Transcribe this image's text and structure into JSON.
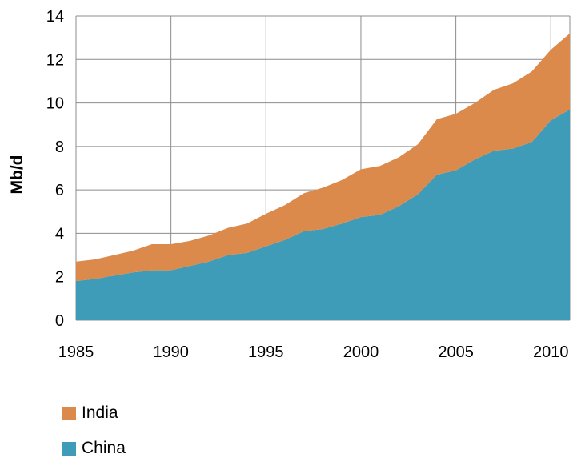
{
  "chart_data": {
    "type": "area",
    "stacked": true,
    "ylabel": "Mb/d",
    "xlabel": "",
    "title": "",
    "xlim": [
      1985,
      2011
    ],
    "ylim": [
      0,
      14
    ],
    "x_ticks": [
      1985,
      1990,
      1995,
      2000,
      2005,
      2010
    ],
    "y_ticks": [
      0,
      2,
      4,
      6,
      8,
      10,
      12,
      14
    ],
    "grid": true,
    "legend_position": "bottom-left",
    "x": [
      1985,
      1986,
      1987,
      1988,
      1989,
      1990,
      1991,
      1992,
      1993,
      1994,
      1995,
      1996,
      1997,
      1998,
      1999,
      2000,
      2001,
      2002,
      2003,
      2004,
      2005,
      2006,
      2007,
      2008,
      2009,
      2010,
      2011
    ],
    "series": [
      {
        "name": "China",
        "color": "#3f9cb8",
        "values": [
          1.8,
          1.9,
          2.05,
          2.2,
          2.3,
          2.3,
          2.5,
          2.7,
          3.0,
          3.1,
          3.4,
          3.7,
          4.1,
          4.2,
          4.45,
          4.75,
          4.85,
          5.25,
          5.8,
          6.7,
          6.9,
          7.4,
          7.8,
          7.9,
          8.2,
          9.2,
          9.7
        ]
      },
      {
        "name": "India",
        "color": "#dc8a4c",
        "values": [
          0.9,
          0.9,
          0.95,
          1.0,
          1.2,
          1.2,
          1.15,
          1.2,
          1.25,
          1.35,
          1.5,
          1.6,
          1.75,
          1.9,
          2.0,
          2.2,
          2.25,
          2.25,
          2.3,
          2.55,
          2.6,
          2.6,
          2.8,
          3.0,
          3.25,
          3.25,
          3.5
        ]
      }
    ],
    "legend": [
      {
        "label": "India",
        "color": "#dc8a4c"
      },
      {
        "label": "China",
        "color": "#3f9cb8"
      }
    ]
  }
}
